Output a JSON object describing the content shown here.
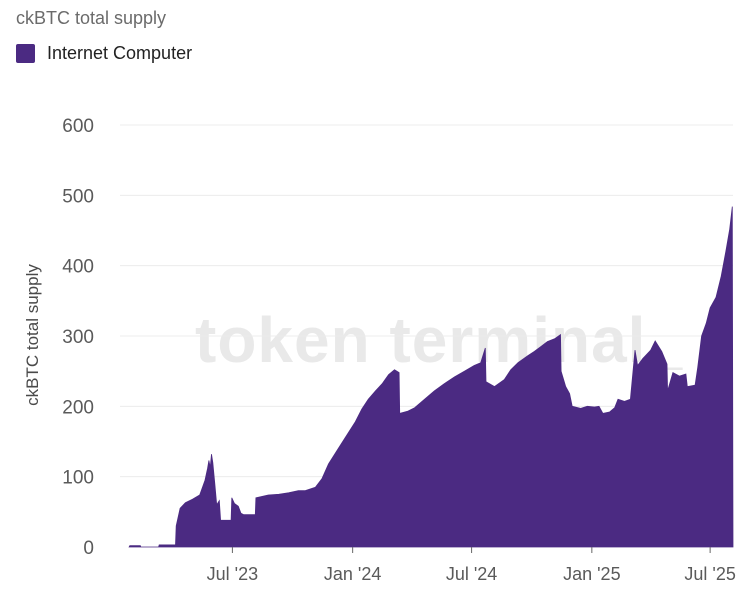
{
  "chart_data": {
    "type": "area",
    "title": "ckBTC total supply",
    "ylabel": "ckBTC total supply",
    "xlabel": "",
    "legend": "top-left",
    "grid": true,
    "ylim": [
      0,
      600
    ],
    "yticks": [
      0,
      100,
      200,
      300,
      400,
      500,
      600
    ],
    "xticks": [
      "Jul '23",
      "Jan '24",
      "Jul '24",
      "Jan '25",
      "Jul '25"
    ],
    "watermark": "token terminal_",
    "color": "#4b2a82",
    "series": [
      {
        "name": "Internet Computer",
        "points": [
          [
            "2023-01-24",
            0
          ],
          [
            "2023-01-25",
            2
          ],
          [
            "2023-02-10",
            2
          ],
          [
            "2023-02-11",
            0
          ],
          [
            "2023-03-10",
            0
          ],
          [
            "2023-03-11",
            3
          ],
          [
            "2023-04-05",
            3
          ],
          [
            "2023-04-06",
            30
          ],
          [
            "2023-04-12",
            55
          ],
          [
            "2023-04-20",
            63
          ],
          [
            "2023-05-01",
            68
          ],
          [
            "2023-05-12",
            74
          ],
          [
            "2023-05-20",
            95
          ],
          [
            "2023-05-24",
            112
          ],
          [
            "2023-05-26",
            123
          ],
          [
            "2023-05-28",
            113
          ],
          [
            "2023-05-30",
            132
          ],
          [
            "2023-06-01",
            120
          ],
          [
            "2023-06-04",
            90
          ],
          [
            "2023-06-07",
            60
          ],
          [
            "2023-06-11",
            66
          ],
          [
            "2023-06-13",
            38
          ],
          [
            "2023-06-29",
            38
          ],
          [
            "2023-06-30",
            70
          ],
          [
            "2023-07-04",
            62
          ],
          [
            "2023-07-10",
            58
          ],
          [
            "2023-07-14",
            48
          ],
          [
            "2023-07-18",
            46
          ],
          [
            "2023-08-05",
            46
          ],
          [
            "2023-08-06",
            70
          ],
          [
            "2023-08-25",
            74
          ],
          [
            "2023-09-10",
            75
          ],
          [
            "2023-09-25",
            77
          ],
          [
            "2023-10-10",
            80
          ],
          [
            "2023-10-20",
            80
          ],
          [
            "2023-11-05",
            85
          ],
          [
            "2023-11-15",
            97
          ],
          [
            "2023-11-25",
            118
          ],
          [
            "2023-12-10",
            140
          ],
          [
            "2023-12-25",
            162
          ],
          [
            "2024-01-05",
            178
          ],
          [
            "2024-01-15",
            196
          ],
          [
            "2024-01-25",
            210
          ],
          [
            "2024-02-05",
            222
          ],
          [
            "2024-02-15",
            232
          ],
          [
            "2024-02-25",
            245
          ],
          [
            "2024-03-05",
            252
          ],
          [
            "2024-03-12",
            248
          ],
          [
            "2024-03-13",
            190
          ],
          [
            "2024-03-25",
            193
          ],
          [
            "2024-04-05",
            198
          ],
          [
            "2024-04-20",
            210
          ],
          [
            "2024-05-05",
            222
          ],
          [
            "2024-05-20",
            232
          ],
          [
            "2024-06-05",
            242
          ],
          [
            "2024-06-20",
            250
          ],
          [
            "2024-07-05",
            258
          ],
          [
            "2024-07-15",
            262
          ],
          [
            "2024-07-22",
            283
          ],
          [
            "2024-07-23",
            235
          ],
          [
            "2024-08-05",
            228
          ],
          [
            "2024-08-20",
            238
          ],
          [
            "2024-08-30",
            252
          ],
          [
            "2024-09-10",
            262
          ],
          [
            "2024-09-25",
            272
          ],
          [
            "2024-10-05",
            278
          ],
          [
            "2024-10-15",
            285
          ],
          [
            "2024-10-25",
            292
          ],
          [
            "2024-11-05",
            296
          ],
          [
            "2024-11-14",
            302
          ],
          [
            "2024-11-15",
            250
          ],
          [
            "2024-11-22",
            228
          ],
          [
            "2024-11-28",
            218
          ],
          [
            "2024-12-02",
            200
          ],
          [
            "2024-12-15",
            197
          ],
          [
            "2024-12-25",
            200
          ],
          [
            "2025-01-05",
            199
          ],
          [
            "2025-01-12",
            200
          ],
          [
            "2025-01-18",
            190
          ],
          [
            "2025-01-28",
            192
          ],
          [
            "2025-02-05",
            198
          ],
          [
            "2025-02-10",
            210
          ],
          [
            "2025-02-20",
            207
          ],
          [
            "2025-03-01",
            210
          ],
          [
            "2025-03-08",
            280
          ],
          [
            "2025-03-12",
            258
          ],
          [
            "2025-03-20",
            268
          ],
          [
            "2025-04-01",
            280
          ],
          [
            "2025-04-08",
            293
          ],
          [
            "2025-04-18",
            278
          ],
          [
            "2025-04-26",
            260
          ],
          [
            "2025-04-27",
            222
          ],
          [
            "2025-05-05",
            248
          ],
          [
            "2025-05-15",
            243
          ],
          [
            "2025-05-25",
            246
          ],
          [
            "2025-05-27",
            228
          ],
          [
            "2025-06-08",
            230
          ],
          [
            "2025-06-12",
            255
          ],
          [
            "2025-06-18",
            300
          ],
          [
            "2025-06-25",
            318
          ],
          [
            "2025-07-01",
            340
          ],
          [
            "2025-07-10",
            355
          ],
          [
            "2025-07-18",
            385
          ],
          [
            "2025-07-25",
            420
          ],
          [
            "2025-07-31",
            452
          ],
          [
            "2025-08-04",
            484
          ],
          [
            "2025-08-05",
            0
          ]
        ]
      }
    ]
  }
}
